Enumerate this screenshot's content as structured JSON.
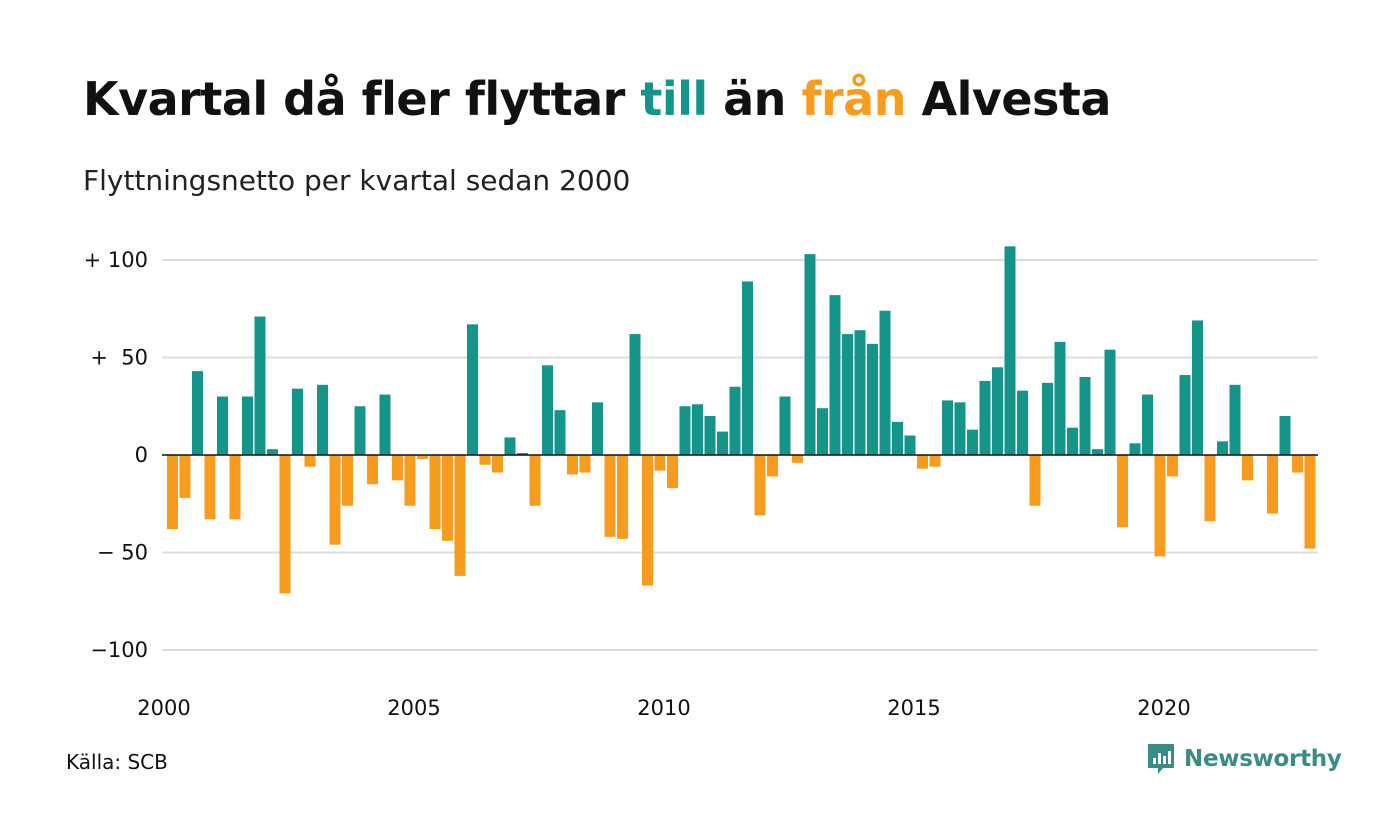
{
  "header": {
    "title_parts": [
      "Kvartal då fler flyttar ",
      "till",
      " än ",
      "från",
      " Alvesta"
    ],
    "subtitle": "Flyttningsnetto per kvartal sedan 2000"
  },
  "footer": {
    "source": "Källa: SCB",
    "brand": "Newsworthy"
  },
  "colors": {
    "positive": "#15958a",
    "negative": "#f79c1e",
    "grid": "#dddddd",
    "zero_line": "#111111"
  },
  "chart_data": {
    "type": "bar",
    "start_year": 2000,
    "periods_per_year": 4,
    "y_tick_values": [
      100,
      50,
      0,
      -50,
      -100
    ],
    "y_tick_labels": [
      "+ 100",
      "+  50",
      "0",
      "− 50",
      "−100"
    ],
    "x_tick_labels": [
      "2000",
      "2005",
      "2010",
      "2015",
      "2020"
    ],
    "ylim": [
      -110,
      108
    ],
    "grid": true,
    "values": [
      -38,
      -22,
      43,
      -33,
      30,
      -33,
      30,
      71,
      3,
      -71,
      34,
      -6,
      36,
      -46,
      -26,
      25,
      -15,
      31,
      -13,
      -26,
      -2,
      -38,
      -44,
      -62,
      67,
      -5,
      -9,
      9,
      1,
      -26,
      46,
      23,
      -10,
      -9,
      27,
      -42,
      -43,
      62,
      -67,
      -8,
      -17,
      25,
      26,
      20,
      12,
      35,
      89,
      -31,
      -11,
      30,
      -4,
      103,
      24,
      82,
      62,
      64,
      57,
      74,
      17,
      10,
      -7,
      -6,
      28,
      27,
      13,
      38,
      45,
      107,
      33,
      -26,
      37,
      58,
      14,
      40,
      3,
      54,
      -37,
      6,
      31,
      -52,
      -11,
      41,
      69,
      -34,
      7,
      36,
      -13,
      0,
      -30,
      20,
      -9,
      -48
    ]
  }
}
